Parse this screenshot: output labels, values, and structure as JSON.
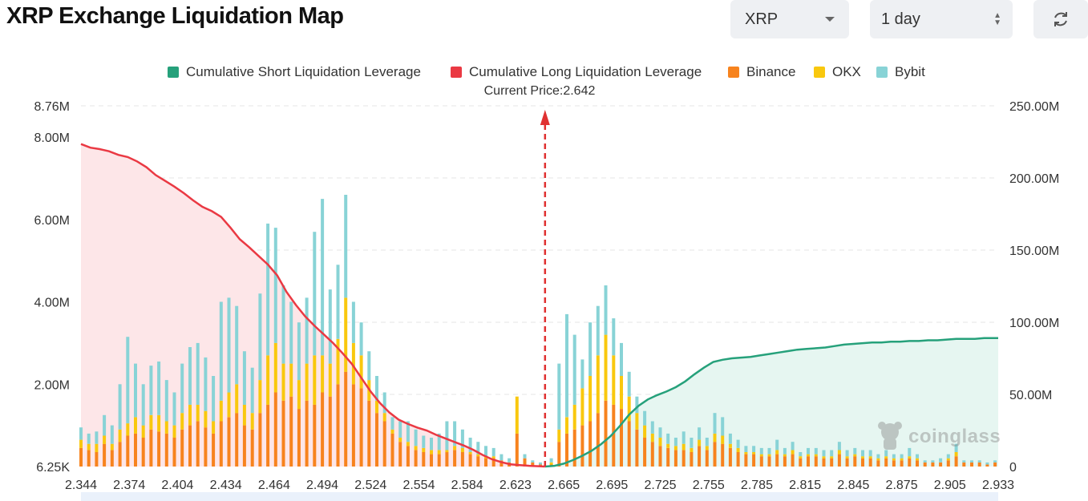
{
  "page": {
    "title": "XRP Exchange Liquidation Map"
  },
  "controls": {
    "coin_select": {
      "value": "XRP",
      "icon": "chevron-down-icon"
    },
    "range_select": {
      "value": "1 day",
      "icon": "updown-icon"
    },
    "refresh_button": {
      "icon": "refresh-icon"
    }
  },
  "watermark": {
    "text": "coinglass"
  },
  "colors": {
    "short": "#26a17b",
    "short_fill": "#e6f6f1",
    "long": "#ea3943",
    "long_fill": "#fde6e8",
    "binance": "#f7831e",
    "okx": "#f9c80e",
    "bybit": "#88d3d6",
    "marker": "#e03131"
  },
  "chart_data": {
    "type": "bar",
    "legend": [
      {
        "name": "Cumulative Short Liquidation Leverage",
        "color": "#26a17b"
      },
      {
        "name": "Cumulative Long Liquidation Leverage",
        "color": "#ea3943"
      },
      {
        "name": "Binance",
        "color": "#f7831e"
      },
      {
        "name": "OKX",
        "color": "#f9c80e"
      },
      {
        "name": "Bybit",
        "color": "#88d3d6"
      }
    ],
    "legend_position": "top-center",
    "current_price_label": "Current Price:2.642",
    "current_price": 2.642,
    "x_range": [
      2.344,
      2.933
    ],
    "x_ticks": [
      "2.344",
      "2.374",
      "2.404",
      "2.434",
      "2.464",
      "2.494",
      "2.524",
      "2.554",
      "2.584",
      "2.623",
      "2.665",
      "2.695",
      "2.725",
      "2.755",
      "2.785",
      "2.815",
      "2.845",
      "2.875",
      "2.905",
      "2.933"
    ],
    "y_left_ticks": [
      {
        "label": "6.25K",
        "value": 0.00625
      },
      {
        "label": "2.00M",
        "value": 2
      },
      {
        "label": "4.00M",
        "value": 4
      },
      {
        "label": "6.00M",
        "value": 6
      },
      {
        "label": "8.00M",
        "value": 8
      },
      {
        "label": "8.76M",
        "value": 8.76
      }
    ],
    "y_left_range": [
      0,
      8.76
    ],
    "y_right_ticks": [
      "0",
      "50.00M",
      "100.00M",
      "150.00M",
      "200.00M",
      "250.00M"
    ],
    "y_right_range": [
      0,
      250
    ],
    "grid": true,
    "long_cumulative": {
      "x": [
        2.344,
        2.35,
        2.356,
        2.362,
        2.368,
        2.374,
        2.38,
        2.386,
        2.392,
        2.398,
        2.404,
        2.41,
        2.416,
        2.422,
        2.428,
        2.434,
        2.44,
        2.446,
        2.452,
        2.458,
        2.464,
        2.47,
        2.476,
        2.482,
        2.488,
        2.494,
        2.5,
        2.506,
        2.512,
        2.518,
        2.524,
        2.53,
        2.536,
        2.542,
        2.548,
        2.554,
        2.56,
        2.566,
        2.572,
        2.578,
        2.584,
        2.59,
        2.596,
        2.602,
        2.608,
        2.614,
        2.62,
        2.626,
        2.632,
        2.638,
        2.642
      ],
      "y": [
        223.5,
        221.0,
        220.0,
        218.5,
        216.0,
        214.5,
        211.5,
        207.5,
        202.0,
        198.0,
        194.0,
        189.5,
        184.5,
        180.0,
        177.0,
        173.0,
        165.5,
        157.5,
        152.0,
        146.0,
        140.0,
        132.5,
        121.0,
        112.0,
        104.0,
        97.5,
        91.5,
        85.5,
        78.5,
        71.0,
        61.5,
        52.0,
        44.0,
        37.5,
        32.5,
        29.5,
        27.0,
        25.0,
        22.0,
        19.5,
        17.0,
        14.5,
        11.5,
        8.0,
        5.0,
        3.0,
        1.5,
        1.0,
        0.5,
        0.2,
        0.0
      ]
    },
    "short_cumulative": {
      "x": [
        2.642,
        2.648,
        2.654,
        2.66,
        2.666,
        2.672,
        2.678,
        2.684,
        2.69,
        2.696,
        2.702,
        2.708,
        2.714,
        2.72,
        2.726,
        2.732,
        2.738,
        2.744,
        2.75,
        2.756,
        2.762,
        2.768,
        2.774,
        2.78,
        2.786,
        2.792,
        2.798,
        2.804,
        2.81,
        2.816,
        2.822,
        2.828,
        2.834,
        2.84,
        2.846,
        2.852,
        2.858,
        2.864,
        2.87,
        2.876,
        2.882,
        2.888,
        2.894,
        2.9,
        2.906,
        2.912,
        2.918,
        2.924,
        2.933
      ],
      "y": [
        0.0,
        0.5,
        2.0,
        4.5,
        7.5,
        11.0,
        15.5,
        21.0,
        28.0,
        36.0,
        42.0,
        46.5,
        49.5,
        52.0,
        55.0,
        59.0,
        64.0,
        68.5,
        72.5,
        74.0,
        75.0,
        75.5,
        76.0,
        77.0,
        78.0,
        79.0,
        80.0,
        81.0,
        81.5,
        82.0,
        82.5,
        83.5,
        84.5,
        85.0,
        85.5,
        86.0,
        86.0,
        86.5,
        86.5,
        87.0,
        87.0,
        87.5,
        87.5,
        88.0,
        88.5,
        88.5,
        88.5,
        89.0,
        89.0
      ]
    },
    "bars_units": "M",
    "bars": {
      "x": [
        2.344,
        2.349,
        2.354,
        2.359,
        2.364,
        2.369,
        2.374,
        2.379,
        2.384,
        2.389,
        2.394,
        2.399,
        2.404,
        2.409,
        2.414,
        2.419,
        2.424,
        2.429,
        2.434,
        2.439,
        2.444,
        2.449,
        2.454,
        2.459,
        2.464,
        2.469,
        2.474,
        2.479,
        2.484,
        2.489,
        2.494,
        2.499,
        2.504,
        2.509,
        2.514,
        2.519,
        2.524,
        2.529,
        2.534,
        2.539,
        2.544,
        2.549,
        2.554,
        2.559,
        2.564,
        2.569,
        2.574,
        2.579,
        2.584,
        2.589,
        2.594,
        2.599,
        2.604,
        2.609,
        2.614,
        2.619,
        2.624,
        2.629,
        2.634,
        2.639,
        2.646,
        2.651,
        2.656,
        2.661,
        2.666,
        2.671,
        2.676,
        2.681,
        2.686,
        2.691,
        2.696,
        2.701,
        2.706,
        2.711,
        2.716,
        2.721,
        2.726,
        2.731,
        2.736,
        2.741,
        2.746,
        2.751,
        2.756,
        2.761,
        2.766,
        2.771,
        2.776,
        2.781,
        2.786,
        2.791,
        2.796,
        2.801,
        2.806,
        2.811,
        2.816,
        2.821,
        2.826,
        2.831,
        2.836,
        2.841,
        2.846,
        2.851,
        2.856,
        2.861,
        2.866,
        2.871,
        2.876,
        2.881,
        2.886,
        2.891,
        2.896,
        2.901,
        2.906,
        2.911,
        2.916,
        2.921,
        2.926,
        2.931
      ],
      "binance": [
        0.45,
        0.4,
        0.35,
        0.55,
        0.4,
        0.6,
        0.75,
        0.8,
        0.7,
        0.9,
        0.85,
        0.8,
        0.7,
        0.9,
        1.0,
        1.1,
        0.95,
        0.8,
        1.1,
        1.2,
        1.3,
        1.0,
        0.9,
        1.3,
        1.5,
        1.8,
        1.6,
        1.7,
        1.4,
        1.6,
        1.5,
        1.8,
        1.7,
        2.0,
        2.3,
        2.0,
        1.9,
        1.6,
        1.3,
        1.1,
        0.8,
        0.6,
        0.5,
        0.4,
        0.35,
        0.3,
        0.3,
        0.35,
        0.4,
        0.35,
        0.3,
        0.25,
        0.2,
        0.2,
        0.15,
        0.1,
        0.8,
        0.2,
        0.1,
        0.05,
        0.05,
        0.6,
        0.8,
        0.9,
        1.0,
        1.1,
        1.3,
        1.6,
        1.5,
        1.4,
        1.1,
        0.9,
        0.7,
        0.6,
        0.5,
        0.45,
        0.4,
        0.4,
        0.35,
        0.5,
        0.4,
        0.6,
        0.55,
        0.45,
        0.35,
        0.3,
        0.3,
        0.25,
        0.25,
        0.3,
        0.25,
        0.3,
        0.2,
        0.25,
        0.25,
        0.2,
        0.2,
        0.3,
        0.2,
        0.25,
        0.2,
        0.2,
        0.15,
        0.2,
        0.15,
        0.15,
        0.2,
        0.15,
        0.1,
        0.1,
        0.1,
        0.15,
        0.25,
        0.1,
        0.1,
        0.1,
        0.05,
        0.1
      ],
      "okx": [
        0.2,
        0.15,
        0.2,
        0.2,
        0.15,
        0.3,
        0.3,
        0.4,
        0.3,
        0.35,
        0.4,
        0.3,
        0.3,
        0.4,
        0.5,
        0.4,
        0.4,
        0.3,
        0.5,
        0.6,
        0.7,
        0.5,
        0.4,
        0.8,
        1.2,
        1.2,
        0.9,
        0.8,
        0.7,
        0.9,
        1.2,
        0.9,
        0.8,
        1.1,
        1.8,
        1.0,
        0.8,
        0.5,
        0.3,
        0.2,
        0.1,
        0.1,
        0.1,
        0.1,
        0.1,
        0.1,
        0.1,
        0.05,
        0.1,
        0.1,
        0.05,
        0.05,
        0.05,
        0.05,
        0.0,
        0.0,
        0.9,
        0.0,
        0.0,
        0.0,
        0.05,
        0.3,
        0.4,
        0.6,
        0.9,
        1.1,
        1.4,
        1.6,
        1.2,
        0.8,
        0.6,
        0.4,
        0.3,
        0.2,
        0.2,
        0.1,
        0.1,
        0.15,
        0.1,
        0.15,
        0.1,
        0.2,
        0.2,
        0.1,
        0.1,
        0.05,
        0.05,
        0.05,
        0.05,
        0.1,
        0.05,
        0.1,
        0.05,
        0.05,
        0.05,
        0.05,
        0.05,
        0.1,
        0.05,
        0.05,
        0.05,
        0.05,
        0.05,
        0.05,
        0.05,
        0.05,
        0.05,
        0.05,
        0.0,
        0.0,
        0.0,
        0.05,
        0.1,
        0.0,
        0.0,
        0.0,
        0.0,
        0.0
      ],
      "bybit": [
        0.3,
        0.25,
        0.3,
        0.5,
        0.45,
        1.1,
        2.1,
        1.3,
        1.0,
        1.2,
        1.3,
        1.0,
        0.8,
        1.2,
        1.4,
        1.5,
        1.3,
        1.1,
        2.4,
        2.3,
        1.9,
        1.3,
        1.1,
        2.1,
        3.2,
        2.8,
        1.9,
        1.5,
        1.4,
        1.6,
        3.0,
        3.8,
        1.8,
        1.8,
        2.5,
        1.0,
        0.8,
        0.7,
        0.6,
        0.5,
        0.3,
        0.4,
        0.5,
        0.4,
        0.3,
        0.3,
        0.4,
        0.7,
        0.6,
        0.45,
        0.35,
        0.3,
        0.25,
        0.2,
        0.15,
        0.1,
        0.0,
        0.1,
        0.05,
        0.05,
        0.1,
        1.6,
        2.5,
        1.7,
        0.7,
        1.3,
        1.2,
        1.2,
        0.9,
        0.8,
        0.6,
        0.4,
        0.35,
        0.3,
        0.25,
        0.25,
        0.2,
        0.3,
        0.25,
        0.3,
        0.2,
        0.5,
        0.45,
        0.25,
        0.2,
        0.15,
        0.15,
        0.15,
        0.15,
        0.25,
        0.15,
        0.2,
        0.1,
        0.15,
        0.15,
        0.15,
        0.15,
        0.2,
        0.15,
        0.15,
        0.15,
        0.15,
        0.1,
        0.15,
        0.1,
        0.1,
        0.2,
        0.1,
        0.05,
        0.05,
        0.1,
        0.1,
        0.2,
        0.05,
        0.05,
        0.05,
        0.05,
        0.05
      ]
    }
  }
}
